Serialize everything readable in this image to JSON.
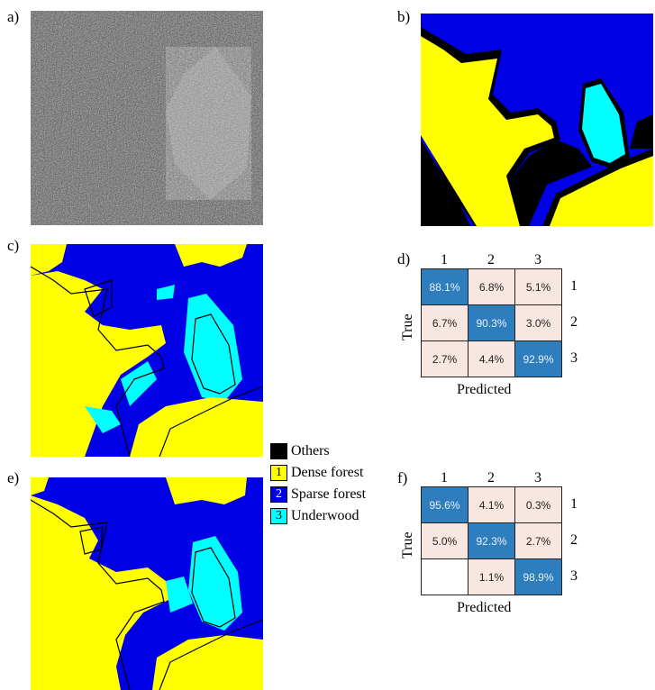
{
  "panels": {
    "a": "a)",
    "b": "b)",
    "c": "c)",
    "d": "d)",
    "e": "e)",
    "f": "f)"
  },
  "colors": {
    "dense": "#ffff00",
    "sparse": "#0000e6",
    "underwood": "#00ffff",
    "others": "#000000",
    "cell_high": "#2e7ebd",
    "cell_low": "#f8e6e1",
    "cell_zero": "#ffffff"
  },
  "legend": [
    {
      "num": "",
      "label": "Others",
      "color": "#000000"
    },
    {
      "num": "1",
      "label": "Dense forest",
      "color": "#ffff00"
    },
    {
      "num": "2",
      "label": "Sparse forest",
      "color": "#0000e6"
    },
    {
      "num": "3",
      "label": "Underwood",
      "color": "#00ffff"
    }
  ],
  "cm_d": {
    "col_labels": [
      "1",
      "2",
      "3"
    ],
    "row_labels": [
      "1",
      "2",
      "3"
    ],
    "xlabel": "Predicted",
    "ylabel": "True",
    "cells": [
      [
        "88.1%",
        "6.8%",
        "5.1%"
      ],
      [
        "6.7%",
        "90.3%",
        "3.0%"
      ],
      [
        "2.7%",
        "4.4%",
        "92.9%"
      ]
    ]
  },
  "cm_f": {
    "col_labels": [
      "1",
      "2",
      "3"
    ],
    "row_labels": [
      "1",
      "2",
      "3"
    ],
    "xlabel": "Predicted",
    "ylabel": "True",
    "cells": [
      [
        "95.6%",
        "4.1%",
        "0.3%"
      ],
      [
        "5.0%",
        "92.3%",
        "2.7%"
      ],
      [
        "",
        "1.1%",
        "98.9%"
      ]
    ]
  },
  "chart_data": [
    {
      "type": "heatmap",
      "title": "",
      "xlabel": "Predicted",
      "ylabel": "True",
      "x": [
        "1",
        "2",
        "3"
      ],
      "y": [
        "1",
        "2",
        "3"
      ],
      "values": [
        [
          88.1,
          6.8,
          5.1
        ],
        [
          6.7,
          90.3,
          3.0
        ],
        [
          2.7,
          4.4,
          92.9
        ]
      ],
      "unit": "%"
    },
    {
      "type": "heatmap",
      "title": "",
      "xlabel": "Predicted",
      "ylabel": "True",
      "x": [
        "1",
        "2",
        "3"
      ],
      "y": [
        "1",
        "2",
        "3"
      ],
      "values": [
        [
          95.6,
          4.1,
          0.3
        ],
        [
          5.0,
          92.3,
          2.7
        ],
        [
          null,
          1.1,
          98.9
        ]
      ],
      "unit": "%"
    }
  ]
}
